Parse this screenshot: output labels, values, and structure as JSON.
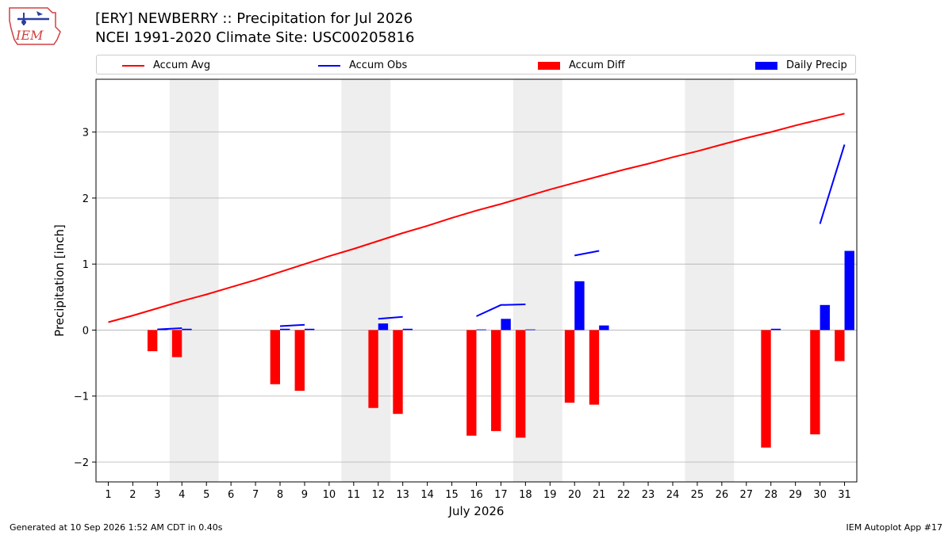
{
  "header": {
    "title_line1": "[ERY] NEWBERRY :: Precipitation for Jul 2026",
    "title_line2": "NCEI 1991-2020 Climate Site: USC00205816",
    "logo_text": "IEM"
  },
  "footer": {
    "generated": "Generated at 10 Sep 2026 1:52 AM CDT in 0.40s",
    "app": "IEM Autoplot App #17"
  },
  "colors": {
    "accum_avg": "#ff0000",
    "accum_obs": "#0000ff",
    "accum_diff": "#ff0000",
    "daily_precip": "#0000ff",
    "weekend_shade": "#eeeeee",
    "grid": "#b0b0b0"
  },
  "chart_data": {
    "type": "bar",
    "xlabel": "July 2026",
    "ylabel": "Precipitation [inch]",
    "xlim": [
      0.5,
      31.5
    ],
    "ylim": [
      -2.3,
      3.8
    ],
    "yticks": [
      -2,
      -1,
      0,
      1,
      2,
      3
    ],
    "ytick_labels": [
      "−2",
      "−1",
      "0",
      "1",
      "2",
      "3"
    ],
    "grid": "y",
    "legend_position": "top",
    "days": [
      1,
      2,
      3,
      4,
      5,
      6,
      7,
      8,
      9,
      10,
      11,
      12,
      13,
      14,
      15,
      16,
      17,
      18,
      19,
      20,
      21,
      22,
      23,
      24,
      25,
      26,
      27,
      28,
      29,
      30,
      31
    ],
    "shaded_days": [
      [
        4,
        5
      ],
      [
        11,
        12
      ],
      [
        18,
        19
      ],
      [
        25,
        26
      ]
    ],
    "legend": [
      {
        "label": "Accum Avg",
        "kind": "line",
        "color": "#ff0000"
      },
      {
        "label": "Accum Obs",
        "kind": "line",
        "color": "#0000ff"
      },
      {
        "label": "Accum Diff",
        "kind": "bar",
        "color": "#ff0000"
      },
      {
        "label": "Daily Precip",
        "kind": "bar",
        "color": "#0000ff"
      }
    ],
    "series": [
      {
        "name": "Accum Avg",
        "type": "line",
        "color": "#ff0000",
        "values": [
          0.12,
          0.22,
          0.33,
          0.44,
          0.54,
          0.65,
          0.76,
          0.88,
          1.0,
          1.12,
          1.23,
          1.35,
          1.47,
          1.58,
          1.7,
          1.81,
          1.91,
          2.02,
          2.13,
          2.23,
          2.33,
          2.43,
          2.52,
          2.62,
          2.71,
          2.81,
          2.91,
          3.0,
          3.1,
          3.19,
          3.28
        ]
      },
      {
        "name": "Accum Obs",
        "type": "line",
        "color": "#0000ff",
        "values": [
          null,
          null,
          0.01,
          0.03,
          null,
          null,
          null,
          0.06,
          0.08,
          null,
          null,
          0.17,
          0.2,
          null,
          null,
          0.21,
          0.38,
          0.39,
          null,
          1.13,
          1.2,
          null,
          null,
          null,
          null,
          null,
          null,
          null,
          null,
          1.61,
          2.81
        ]
      },
      {
        "name": "Accum Diff",
        "type": "bar",
        "color": "#ff0000",
        "values": [
          null,
          null,
          -0.32,
          -0.41,
          null,
          null,
          null,
          -0.82,
          -0.92,
          null,
          null,
          -1.18,
          -1.27,
          null,
          null,
          -1.6,
          -1.53,
          -1.63,
          null,
          -1.1,
          -1.13,
          null,
          null,
          null,
          null,
          null,
          null,
          -1.78,
          null,
          -1.58,
          -0.47
        ]
      },
      {
        "name": "Daily Precip",
        "type": "bar",
        "color": "#0000ff",
        "values": [
          null,
          null,
          0.01,
          0.02,
          null,
          null,
          null,
          0.02,
          0.02,
          null,
          null,
          0.1,
          0.02,
          null,
          null,
          0.01,
          0.17,
          0.01,
          null,
          0.74,
          0.07,
          null,
          null,
          null,
          null,
          null,
          null,
          0.02,
          null,
          0.38,
          1.2
        ]
      }
    ]
  }
}
